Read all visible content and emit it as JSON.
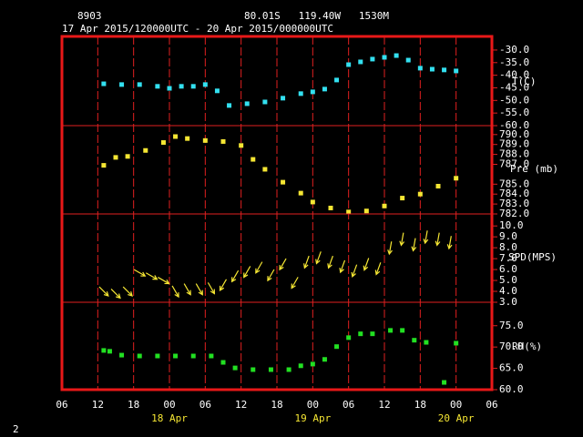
{
  "chart_data": {
    "type": "meteogram",
    "station": "8903",
    "location": "80.01S   119.40W   1530M",
    "period": "17 Apr 2015/120000UTC - 20 Apr 2015/000000UTC",
    "page_number": "2",
    "xlim": [
      6,
      78
    ],
    "xticks": [
      {
        "value": 6,
        "label": "06"
      },
      {
        "value": 12,
        "label": "12"
      },
      {
        "value": 18,
        "label": "18"
      },
      {
        "value": 24,
        "label": "00"
      },
      {
        "value": 30,
        "label": "06"
      },
      {
        "value": 36,
        "label": "12"
      },
      {
        "value": 42,
        "label": "18"
      },
      {
        "value": 48,
        "label": "00"
      },
      {
        "value": 54,
        "label": "06"
      },
      {
        "value": 60,
        "label": "12"
      },
      {
        "value": 66,
        "label": "18"
      },
      {
        "value": 72,
        "label": "00"
      },
      {
        "value": 78,
        "label": "06"
      }
    ],
    "date_labels": [
      {
        "value": 24,
        "label": "18 Apr"
      },
      {
        "value": 48,
        "label": "19 Apr"
      },
      {
        "value": 72,
        "label": "20 Apr"
      }
    ],
    "panels": [
      {
        "type": "scatter",
        "label": "T(C)",
        "color": "#33e0f0",
        "ylim": [
          -60,
          -24.6
        ],
        "yticks": [
          {
            "value": -30,
            "label": "-30.0"
          },
          {
            "value": -35,
            "label": "-35.0"
          },
          {
            "value": -40,
            "label": "-40.0"
          },
          {
            "value": -45,
            "label": "-45.0"
          },
          {
            "value": -50,
            "label": "-50.0"
          },
          {
            "value": -55,
            "label": "-55.0"
          },
          {
            "value": -60,
            "label": "-60.0"
          }
        ],
        "x": [
          13,
          16,
          19,
          22,
          24,
          26,
          28,
          30,
          32,
          34,
          37,
          40,
          43,
          46,
          48,
          50,
          52,
          54,
          56,
          58,
          60,
          62,
          64,
          66,
          68,
          70,
          72
        ],
        "values": [
          -43.4,
          -43.7,
          -43.7,
          -44.4,
          -45.2,
          -44.4,
          -44.4,
          -43.7,
          -46.2,
          -52.0,
          -51.3,
          -50.6,
          -49.1,
          -47.3,
          -46.6,
          -45.5,
          -41.9,
          -35.8,
          -34.7,
          -33.6,
          -32.9,
          -32.2,
          -34.0,
          -37.2,
          -37.6,
          -37.9,
          -38.3
        ]
      },
      {
        "type": "scatter",
        "label": "Pre (mb)",
        "color": "#f5e633",
        "ylim": [
          782,
          790.9
        ],
        "yticks": [
          {
            "value": 790,
            "label": "790.0"
          },
          {
            "value": 789,
            "label": "789.0"
          },
          {
            "value": 788,
            "label": "788.0"
          },
          {
            "value": 787,
            "label": "787.0"
          },
          {
            "value": 785,
            "label": "785.0"
          },
          {
            "value": 784,
            "label": "784.0"
          },
          {
            "value": 783,
            "label": "783.0"
          },
          {
            "value": 782,
            "label": "782.0"
          }
        ],
        "x": [
          13,
          15,
          17,
          20,
          23,
          25,
          27,
          30,
          33,
          36,
          38,
          40,
          43,
          46,
          48,
          51,
          54,
          57,
          60,
          63,
          66,
          69,
          72
        ],
        "values": [
          786.9,
          787.7,
          787.8,
          788.4,
          789.2,
          789.8,
          789.6,
          789.4,
          789.3,
          788.9,
          787.5,
          786.5,
          785.2,
          784.1,
          783.2,
          782.6,
          782.2,
          782.3,
          782.8,
          783.6,
          784.0,
          784.8,
          785.6
        ]
      },
      {
        "type": "wind",
        "label": "SPD(MPS)",
        "color": "#f5e633",
        "ylim": [
          3,
          11.1
        ],
        "yticks": [
          {
            "value": 10,
            "label": "10.0"
          },
          {
            "value": 9,
            "label": "9.0"
          },
          {
            "value": 8,
            "label": "8.0"
          },
          {
            "value": 7,
            "label": "7.0"
          },
          {
            "value": 6,
            "label": "6.0"
          },
          {
            "value": 5,
            "label": "5.0"
          },
          {
            "value": 4,
            "label": "4.0"
          },
          {
            "value": 3,
            "label": "3.0"
          }
        ],
        "x": [
          13,
          15,
          17,
          19,
          21,
          23,
          25,
          27,
          29,
          31,
          33,
          35,
          37,
          39,
          41,
          43,
          45,
          47,
          49,
          51,
          53,
          55,
          57,
          59,
          61,
          63,
          65,
          67,
          69,
          71
        ],
        "values": [
          4.0,
          3.8,
          4.0,
          5.7,
          5.4,
          5.0,
          4.0,
          4.2,
          4.2,
          4.3,
          4.6,
          5.4,
          5.8,
          6.2,
          5.5,
          6.5,
          4.8,
          6.7,
          7.1,
          6.7,
          6.3,
          5.9,
          6.5,
          6.1,
          8.0,
          8.8,
          8.3,
          9.0,
          8.8,
          8.5
        ],
        "directions": [
          315,
          315,
          315,
          300,
          300,
          300,
          330,
          330,
          330,
          330,
          30,
          30,
          30,
          30,
          30,
          30,
          30,
          20,
          20,
          20,
          20,
          20,
          20,
          20,
          10,
          10,
          10,
          10,
          10,
          10
        ]
      },
      {
        "type": "scatter",
        "label": "RH(%)",
        "color": "#22e022",
        "ylim": [
          60,
          80.5
        ],
        "yticks": [
          {
            "value": 75,
            "label": "75.0"
          },
          {
            "value": 70,
            "label": "70.0"
          },
          {
            "value": 65,
            "label": "65.0"
          },
          {
            "value": 60,
            "label": "60.0"
          }
        ],
        "x": [
          13,
          14,
          16,
          19,
          22,
          25,
          28,
          31,
          33,
          35,
          38,
          41,
          44,
          46,
          48,
          50,
          52,
          54,
          56,
          58,
          61,
          63,
          65,
          67,
          70,
          72
        ],
        "values": [
          69.2,
          69.0,
          68.1,
          67.9,
          67.9,
          67.9,
          67.9,
          67.9,
          66.4,
          65.1,
          64.7,
          64.7,
          64.7,
          65.6,
          66.0,
          67.1,
          70.1,
          72.2,
          73.1,
          73.1,
          73.9,
          73.9,
          71.6,
          71.1,
          61.7,
          70.9
        ]
      }
    ]
  }
}
